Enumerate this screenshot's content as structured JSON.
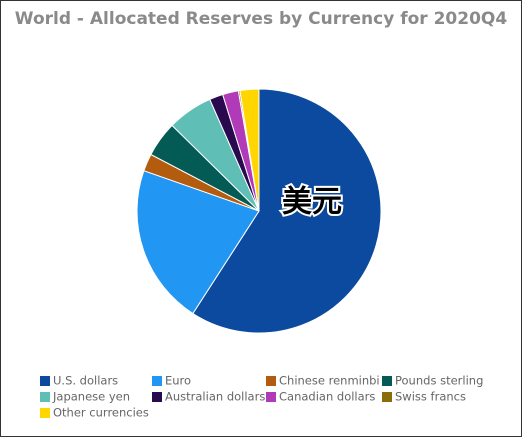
{
  "chart_data": {
    "type": "pie",
    "title": "World - Allocated Reserves by Currency for 2020Q4",
    "annotation": "美元",
    "series": [
      {
        "name": "U.S. dollars",
        "color": "#0b4a9e",
        "values": [
          59.0
        ]
      },
      {
        "name": "Euro",
        "color": "#2196f3",
        "values": [
          21.2
        ]
      },
      {
        "name": "Chinese renminbi",
        "color": "#b35c0f",
        "values": [
          2.3
        ]
      },
      {
        "name": "Pounds sterling",
        "color": "#045a54",
        "values": [
          4.7
        ]
      },
      {
        "name": "Japanese yen",
        "color": "#5fbfb7",
        "values": [
          6.0
        ]
      },
      {
        "name": "Australian dollars",
        "color": "#2a0a4f",
        "values": [
          1.8
        ]
      },
      {
        "name": "Canadian dollars",
        "color": "#b03ab8",
        "values": [
          2.1
        ]
      },
      {
        "name": "Swiss francs",
        "color": "#8a6d0b",
        "values": [
          0.2
        ]
      },
      {
        "name": "Other currencies",
        "color": "#ffd600",
        "values": [
          2.5
        ]
      }
    ]
  }
}
